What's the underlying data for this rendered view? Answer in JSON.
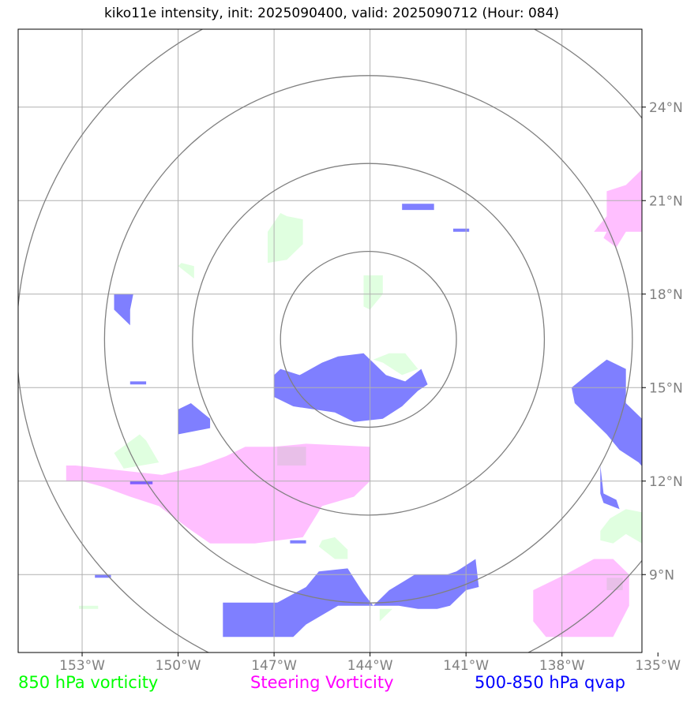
{
  "title": "kiko11e intensity, init: 2025090400, valid: 2025090712 (Hour: 084)",
  "colors": {
    "vort850": "#00ff00",
    "steering": "#ff00ff",
    "qvap": "#0000ff",
    "grid": "#b0b0b0",
    "rings": "#808080",
    "ticks": "#808080"
  },
  "legend": [
    {
      "label": "850 hPa vorticity",
      "color": "#00ff00"
    },
    {
      "label": "Steering Vorticity",
      "color": "#ff00ff"
    },
    {
      "label": "500-850 hPa qvap",
      "color": "#0000ff"
    }
  ],
  "map": {
    "lon_range": [
      -155,
      -135.5
    ],
    "lat_range": [
      6.5,
      26.5
    ],
    "lon_ticks": [
      {
        "value": -153,
        "label": "153°W"
      },
      {
        "value": -150,
        "label": "150°W"
      },
      {
        "value": -147,
        "label": "147°W"
      },
      {
        "value": -144,
        "label": "144°W"
      },
      {
        "value": -141,
        "label": "141°W"
      },
      {
        "value": -138,
        "label": "138°W"
      },
      {
        "value": -135,
        "label": "135°W"
      }
    ],
    "lat_ticks": [
      {
        "value": 9,
        "label": "9°N"
      },
      {
        "value": 12,
        "label": "12°N"
      },
      {
        "value": 15,
        "label": "15°N"
      },
      {
        "value": 18,
        "label": "18°N"
      },
      {
        "value": 21,
        "label": "21°N"
      },
      {
        "value": 24,
        "label": "24°N"
      }
    ],
    "center": {
      "lon": -144.05,
      "lat": 16.55
    },
    "ring_radii_deg": [
      2.75,
      5.5,
      8.25,
      11.0
    ],
    "vort850_regions": [
      [
        [
          -146.8,
          20.6
        ],
        [
          -146.6,
          20.5
        ],
        [
          -146.1,
          20.4
        ],
        [
          -146.1,
          19.6
        ],
        [
          -146.6,
          19.1
        ],
        [
          -147.2,
          19.0
        ],
        [
          -147.2,
          20.0
        ]
      ],
      [
        [
          -149.9,
          19.0
        ],
        [
          -149.5,
          18.9
        ],
        [
          -149.5,
          18.5
        ],
        [
          -150.0,
          18.9
        ]
      ],
      [
        [
          -144.2,
          18.6
        ],
        [
          -143.6,
          18.6
        ],
        [
          -143.6,
          18.0
        ],
        [
          -144.0,
          17.5
        ],
        [
          -144.2,
          17.6
        ]
      ],
      [
        [
          -143.9,
          15.9
        ],
        [
          -143.4,
          16.1
        ],
        [
          -142.9,
          16.1
        ],
        [
          -142.5,
          15.6
        ],
        [
          -143.0,
          15.4
        ],
        [
          -143.6,
          15.8
        ]
      ],
      [
        [
          -151.2,
          13.5
        ],
        [
          -151.0,
          13.3
        ],
        [
          -150.6,
          12.6
        ],
        [
          -151.7,
          12.4
        ],
        [
          -152.0,
          12.9
        ]
      ],
      [
        [
          -146.9,
          13.1
        ],
        [
          -146.0,
          13.1
        ],
        [
          -146.0,
          12.5
        ],
        [
          -146.9,
          12.5
        ]
      ],
      [
        [
          -143.7,
          7.5
        ],
        [
          -143.7,
          7.9
        ],
        [
          -143.3,
          7.9
        ]
      ],
      [
        [
          -145.5,
          10.1
        ],
        [
          -145.1,
          10.2
        ],
        [
          -144.7,
          9.8
        ],
        [
          -144.7,
          9.5
        ],
        [
          -145.1,
          9.5
        ],
        [
          -145.6,
          9.9
        ]
      ],
      [
        [
          -136.5,
          10.8
        ],
        [
          -136.0,
          11.1
        ],
        [
          -135.5,
          11.0
        ],
        [
          -135.5,
          10.0
        ],
        [
          -136.0,
          10.3
        ],
        [
          -136.4,
          10.0
        ],
        [
          -136.8,
          10.1
        ],
        [
          -136.8,
          10.4
        ]
      ],
      [
        [
          -136.6,
          8.9
        ],
        [
          -136.6,
          8.5
        ],
        [
          -136.1,
          8.5
        ],
        [
          -136.1,
          8.9
        ]
      ],
      [
        [
          -153.1,
          7.9
        ],
        [
          -152.5,
          7.9
        ],
        [
          -152.5,
          8.0
        ],
        [
          -153.1,
          8.0
        ]
      ]
    ],
    "steering_regions": [
      [
        [
          -153.5,
          12.5
        ],
        [
          -153.2,
          12.5
        ],
        [
          -150.5,
          12.2
        ],
        [
          -149.3,
          12.5
        ],
        [
          -148.5,
          12.8
        ],
        [
          -147.9,
          13.1
        ],
        [
          -147.0,
          13.1
        ],
        [
          -146.0,
          13.2
        ],
        [
          -144.0,
          13.1
        ],
        [
          -144.0,
          12.0
        ],
        [
          -144.5,
          11.5
        ],
        [
          -145.5,
          11.2
        ],
        [
          -146.1,
          10.2
        ],
        [
          -147.6,
          10.0
        ],
        [
          -149.0,
          10.0
        ],
        [
          -149.7,
          10.5
        ],
        [
          -150.6,
          11.2
        ],
        [
          -151.5,
          11.5
        ],
        [
          -152.3,
          11.8
        ],
        [
          -153.0,
          12.0
        ],
        [
          -153.5,
          12.0
        ]
      ],
      [
        [
          -137.9,
          9.0
        ],
        [
          -137.0,
          9.5
        ],
        [
          -136.4,
          9.5
        ],
        [
          -135.9,
          9.0
        ],
        [
          -135.9,
          8.0
        ],
        [
          -136.4,
          7.0
        ],
        [
          -137.5,
          7.0
        ],
        [
          -138.5,
          7.0
        ],
        [
          -138.9,
          7.5
        ],
        [
          -138.9,
          8.5
        ]
      ],
      [
        [
          -135.5,
          22.0
        ],
        [
          -135.0,
          22.0
        ],
        [
          -135.0,
          21.0
        ],
        [
          -135.0,
          20.0
        ],
        [
          -136.0,
          20.0
        ],
        [
          -136.3,
          19.5
        ],
        [
          -136.7,
          19.8
        ],
        [
          -136.6,
          20.0
        ],
        [
          -137.0,
          20.0
        ],
        [
          -136.6,
          20.5
        ],
        [
          -136.6,
          21.3
        ],
        [
          -136.0,
          21.5
        ]
      ]
    ],
    "qvap_regions": [
      [
        [
          -146.8,
          15.6
        ],
        [
          -146.2,
          15.4
        ],
        [
          -145.5,
          15.8
        ],
        [
          -145.0,
          16.0
        ],
        [
          -144.2,
          16.1
        ],
        [
          -143.5,
          15.4
        ],
        [
          -142.9,
          15.2
        ],
        [
          -142.4,
          15.6
        ],
        [
          -142.2,
          15.1
        ],
        [
          -142.5,
          14.9
        ],
        [
          -143.0,
          14.4
        ],
        [
          -143.6,
          14.0
        ],
        [
          -144.5,
          13.9
        ],
        [
          -145.1,
          14.2
        ],
        [
          -146.4,
          14.4
        ],
        [
          -147.0,
          14.7
        ],
        [
          -147.0,
          15.4
        ]
      ],
      [
        [
          -137.1,
          15.5
        ],
        [
          -136.6,
          15.9
        ],
        [
          -136.0,
          15.6
        ],
        [
          -136.0,
          14.5
        ],
        [
          -135.5,
          14.0
        ],
        [
          -134.9,
          13.3
        ],
        [
          -134.6,
          12.5
        ],
        [
          -134.2,
          12.0
        ],
        [
          -134.0,
          11.5
        ],
        [
          -134.0,
          10.5
        ],
        [
          -134.6,
          10.5
        ],
        [
          -134.6,
          11.6
        ],
        [
          -135.1,
          12.0
        ],
        [
          -135.6,
          12.6
        ],
        [
          -136.2,
          13.0
        ],
        [
          -136.6,
          13.5
        ],
        [
          -137.1,
          14.0
        ],
        [
          -137.6,
          14.5
        ],
        [
          -137.7,
          15.0
        ]
      ],
      [
        [
          -148.6,
          8.1
        ],
        [
          -147.8,
          8.1
        ],
        [
          -146.9,
          8.1
        ],
        [
          -146.0,
          8.6
        ],
        [
          -145.6,
          9.1
        ],
        [
          -144.7,
          9.2
        ],
        [
          -144.2,
          8.4
        ],
        [
          -143.9,
          8.0
        ],
        [
          -143.4,
          8.5
        ],
        [
          -142.6,
          9.0
        ],
        [
          -141.6,
          9.0
        ],
        [
          -141.3,
          9.1
        ],
        [
          -140.7,
          9.5
        ],
        [
          -140.6,
          8.6
        ],
        [
          -141.0,
          8.5
        ],
        [
          -141.5,
          8.0
        ],
        [
          -141.9,
          7.9
        ],
        [
          -142.5,
          7.9
        ],
        [
          -143.1,
          8.0
        ],
        [
          -144.0,
          8.0
        ],
        [
          -145.0,
          8.0
        ],
        [
          -146.0,
          7.4
        ],
        [
          -146.4,
          7.0
        ],
        [
          -147.0,
          7.0
        ],
        [
          -148.0,
          7.0
        ],
        [
          -148.6,
          7.0
        ]
      ],
      [
        [
          -150.0,
          14.3
        ],
        [
          -149.6,
          14.5
        ],
        [
          -149.0,
          14.0
        ],
        [
          -149.0,
          13.7
        ],
        [
          -150.0,
          13.5
        ]
      ],
      [
        [
          -152.0,
          18.0
        ],
        [
          -151.4,
          18.0
        ],
        [
          -151.5,
          17.5
        ],
        [
          -151.5,
          17.0
        ],
        [
          -152.0,
          17.5
        ]
      ],
      [
        [
          -136.8,
          12.5
        ],
        [
          -136.7,
          11.6
        ],
        [
          -136.3,
          11.4
        ],
        [
          -136.2,
          11.1
        ],
        [
          -136.7,
          11.3
        ],
        [
          -136.8,
          11.6
        ],
        [
          -136.8,
          12.4
        ]
      ],
      [
        [
          -143.0,
          20.9
        ],
        [
          -142.0,
          20.9
        ],
        [
          -142.0,
          20.7
        ],
        [
          -143.0,
          20.7
        ]
      ],
      [
        [
          -141.4,
          20.1
        ],
        [
          -140.9,
          20.1
        ],
        [
          -140.9,
          20.0
        ],
        [
          -141.4,
          20.0
        ]
      ],
      [
        [
          -151.5,
          15.2
        ],
        [
          -151.0,
          15.2
        ],
        [
          -151.0,
          15.1
        ],
        [
          -151.5,
          15.1
        ]
      ],
      [
        [
          -151.5,
          12.0
        ],
        [
          -150.8,
          12.0
        ],
        [
          -150.8,
          11.9
        ],
        [
          -151.5,
          11.9
        ]
      ],
      [
        [
          -152.6,
          9.0
        ],
        [
          -152.1,
          9.0
        ],
        [
          -152.1,
          8.9
        ],
        [
          -152.6,
          8.9
        ]
      ],
      [
        [
          -146.5,
          10.1
        ],
        [
          -146.0,
          10.1
        ],
        [
          -146.0,
          10.0
        ],
        [
          -146.5,
          10.0
        ]
      ]
    ]
  }
}
